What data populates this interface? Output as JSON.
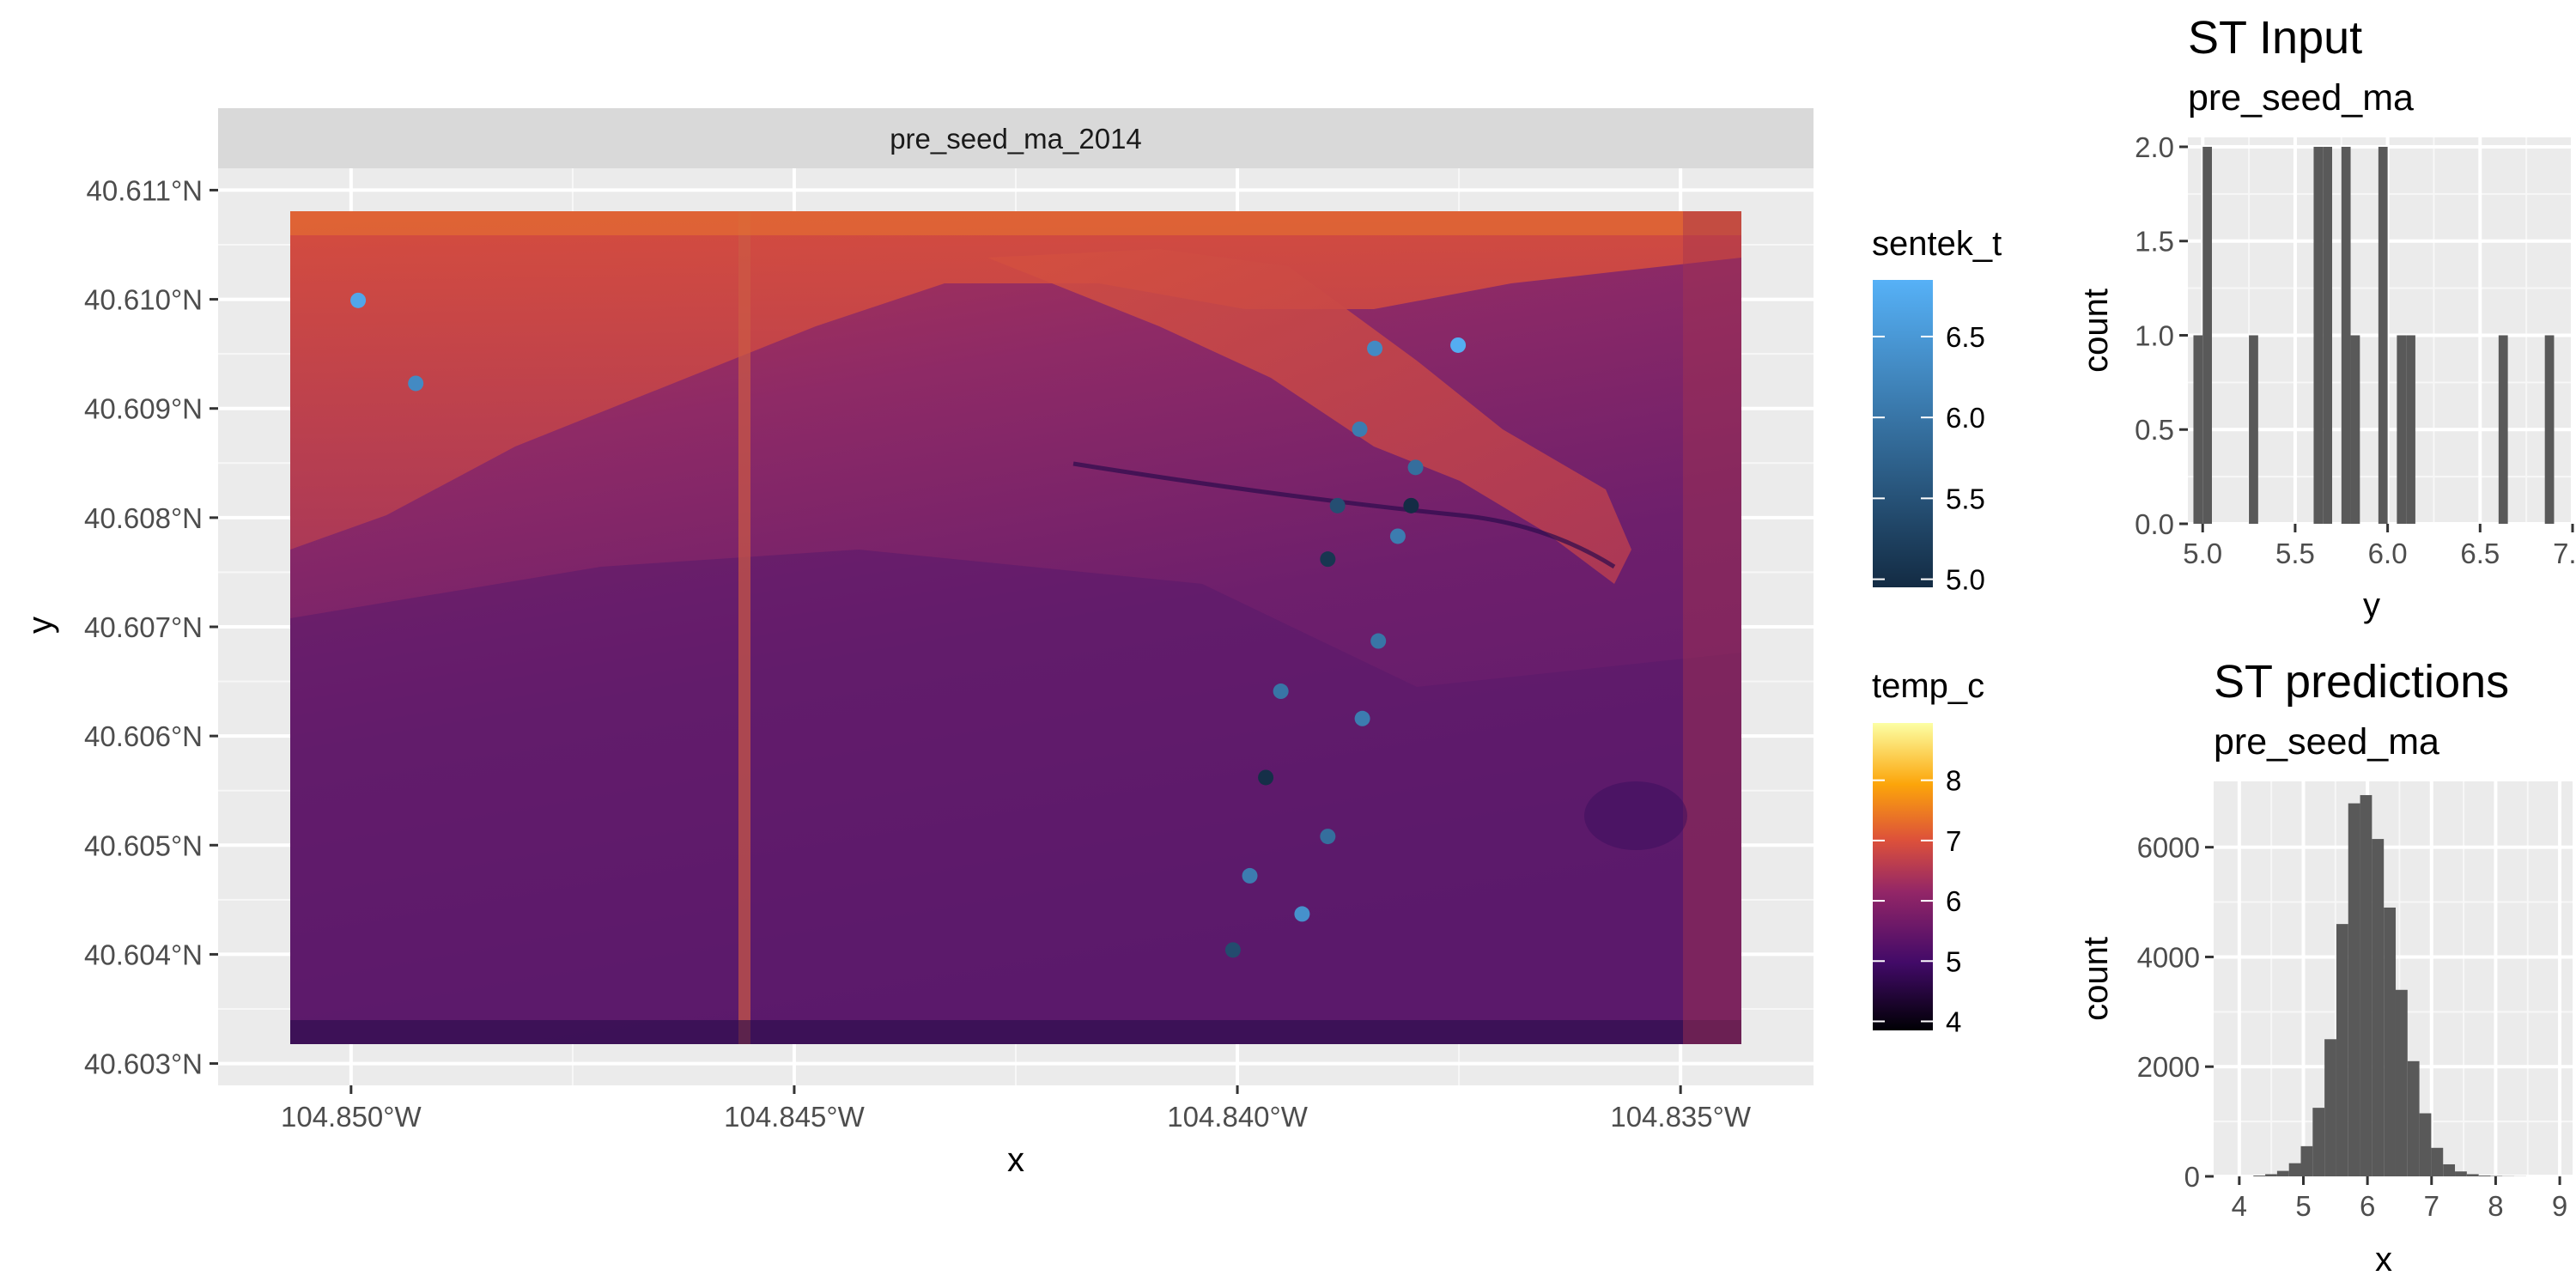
{
  "map_panel": {
    "strip": "pre_seed_ma_2014",
    "xlabel": "x",
    "ylabel": "y",
    "x_ticks": [
      "104.850°W",
      "104.845°W",
      "104.840°W",
      "104.835°W"
    ],
    "y_ticks": [
      "40.611°N",
      "40.610°N",
      "40.609°N",
      "40.608°N",
      "40.607°N",
      "40.606°N",
      "40.605°N",
      "40.604°N",
      "40.603°N"
    ]
  },
  "legend_sentek": {
    "title": "sentek_t",
    "labels": [
      "6.5",
      "6.0",
      "5.5",
      "5.0"
    ],
    "colors": [
      "#56B1F7",
      "#132B43"
    ]
  },
  "legend_temp": {
    "title": "temp_c",
    "labels": [
      "8",
      "7",
      "6",
      "5",
      "4"
    ],
    "colors": [
      "#FCFFA4",
      "#F98C0A",
      "#BC3754",
      "#57106E",
      "#000004"
    ]
  },
  "hist_input": {
    "title": "ST Input",
    "subtitle": "pre_seed_ma",
    "xlabel": "y",
    "ylabel": "count",
    "x_ticks": [
      "5.0",
      "5.5",
      "6.0",
      "6.5",
      "7.0"
    ],
    "y_ticks": [
      "2.0",
      "1.5",
      "1.0",
      "0.5",
      "0.0"
    ]
  },
  "hist_pred": {
    "title": "ST predictions",
    "subtitle": "pre_seed_ma",
    "xlabel": "x",
    "ylabel": "count",
    "x_ticks": [
      "4",
      "5",
      "6",
      "7",
      "8",
      "9"
    ],
    "y_ticks": [
      "6000",
      "4000",
      "2000",
      "0"
    ]
  },
  "chart_data": [
    {
      "type": "scatter",
      "panel": "map",
      "x_range": [
        -104.8515,
        -104.8335
      ],
      "y_range": [
        40.6028,
        40.6112
      ],
      "raster": {
        "name": "temp_c",
        "range": [
          4,
          8.8
        ],
        "extent_x": [
          -104.8508,
          -104.8337
        ],
        "extent_y": [
          40.6032,
          40.6107
        ]
      },
      "color_var": "sentek_t",
      "color_range": [
        4.95,
        6.85
      ],
      "points": [
        {
          "x": -104.84992,
          "y": 40.60999,
          "c": 6.7
        },
        {
          "x": -104.84927,
          "y": 40.60923,
          "c": 6.3
        },
        {
          "x": -104.83845,
          "y": 40.60955,
          "c": 6.3
        },
        {
          "x": -104.83751,
          "y": 40.60958,
          "c": 6.8
        },
        {
          "x": -104.83862,
          "y": 40.60881,
          "c": 6.1
        },
        {
          "x": -104.83799,
          "y": 40.60846,
          "c": 5.9
        },
        {
          "x": -104.83887,
          "y": 40.60811,
          "c": 5.45
        },
        {
          "x": -104.83804,
          "y": 40.60811,
          "c": 4.97
        },
        {
          "x": -104.83819,
          "y": 40.60783,
          "c": 6.1
        },
        {
          "x": -104.83898,
          "y": 40.60762,
          "c": 5.1
        },
        {
          "x": -104.83841,
          "y": 40.60687,
          "c": 6.0
        },
        {
          "x": -104.83951,
          "y": 40.60641,
          "c": 6.0
        },
        {
          "x": -104.83859,
          "y": 40.60616,
          "c": 6.1
        },
        {
          "x": -104.83968,
          "y": 40.60562,
          "c": 5.0
        },
        {
          "x": -104.83898,
          "y": 40.60508,
          "c": 5.9
        },
        {
          "x": -104.83986,
          "y": 40.60472,
          "c": 6.1
        },
        {
          "x": -104.83927,
          "y": 40.60437,
          "c": 6.4
        },
        {
          "x": -104.84005,
          "y": 40.60404,
          "c": 5.4
        }
      ]
    },
    {
      "type": "bar",
      "panel": "ST Input",
      "xlabel": "y",
      "ylabel": "count",
      "xlim": [
        4.92,
        7.0
      ],
      "ylim": [
        0,
        2.05
      ],
      "bin_width": 0.05,
      "bin_starts": [
        4.95,
        5.0,
        5.25,
        5.6,
        5.65,
        5.75,
        5.8,
        5.95,
        6.05,
        6.1,
        6.6,
        6.85
      ],
      "values": [
        1,
        2,
        1,
        2,
        2,
        2,
        1,
        2,
        1,
        1,
        1,
        1
      ]
    },
    {
      "type": "bar",
      "panel": "ST predictions",
      "xlabel": "x",
      "ylabel": "count",
      "xlim": [
        3.6,
        9.2
      ],
      "ylim": [
        0,
        7200
      ],
      "bin_width": 0.185,
      "bin_starts": [
        4.22,
        4.405,
        4.59,
        4.775,
        4.96,
        5.145,
        5.33,
        5.515,
        5.7,
        5.885,
        6.07,
        6.255,
        6.44,
        6.625,
        6.81,
        6.995,
        7.18,
        7.365,
        7.55,
        7.735,
        7.92,
        8.105,
        8.29
      ],
      "values": [
        15,
        40,
        100,
        240,
        550,
        1250,
        2500,
        4600,
        6800,
        6950,
        6150,
        4900,
        3400,
        2100,
        1150,
        520,
        220,
        90,
        40,
        15,
        8,
        4,
        2
      ]
    }
  ]
}
